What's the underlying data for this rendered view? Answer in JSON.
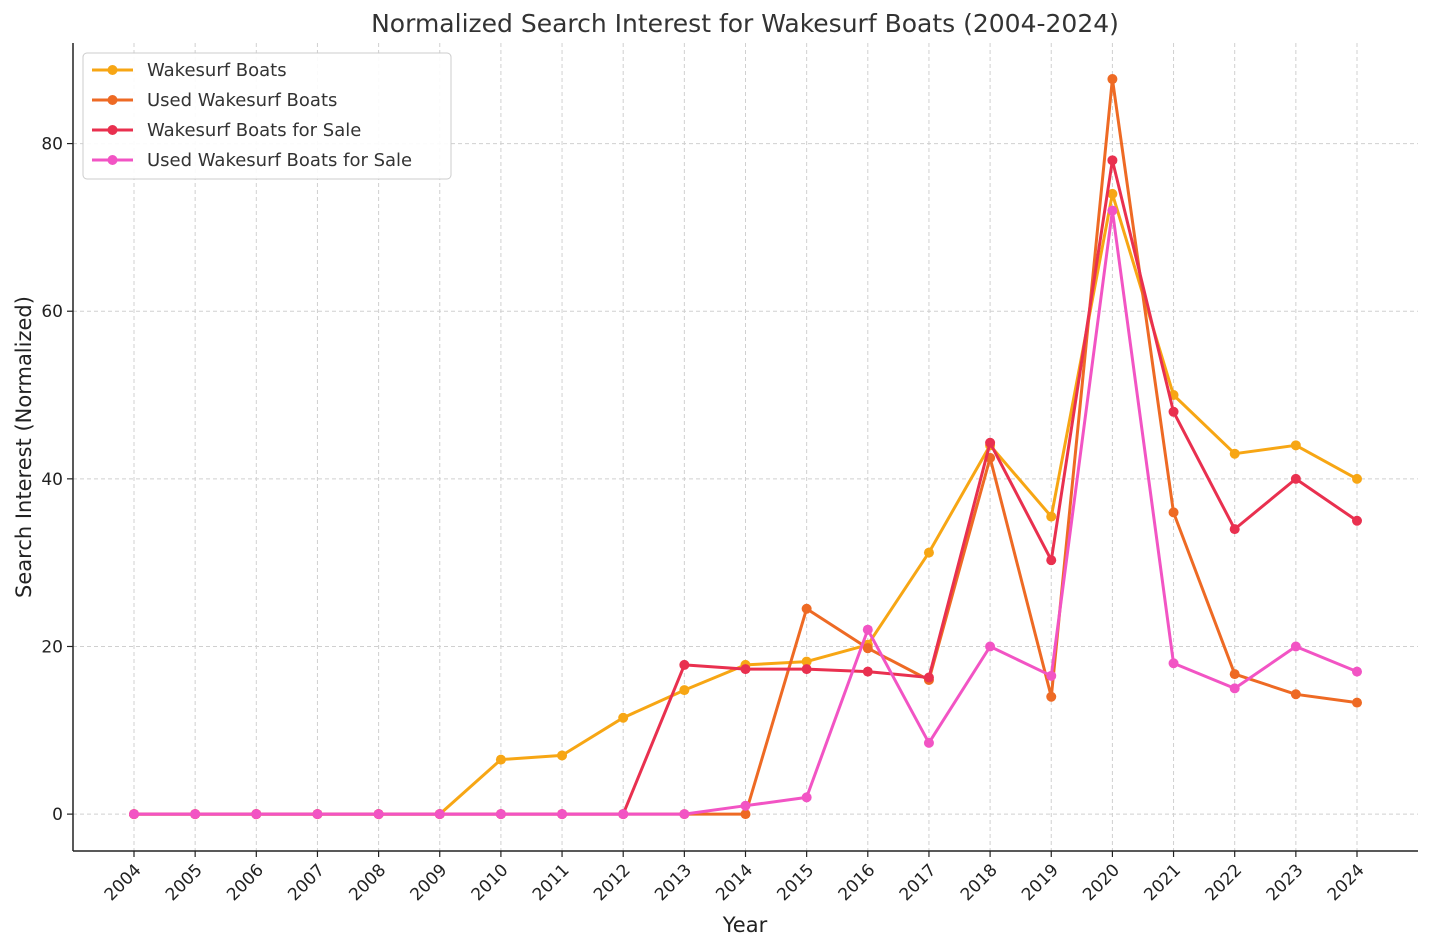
{
  "chart_data": {
    "type": "line",
    "title": "Normalized Search Interest for Wakesurf Boats (2004-2024)",
    "xlabel": "Year",
    "ylabel": "Search Interest (Normalized)",
    "categories": [
      "2004",
      "2005",
      "2006",
      "2007",
      "2008",
      "2009",
      "2010",
      "2011",
      "2012",
      "2013",
      "2014",
      "2015",
      "2016",
      "2017",
      "2018",
      "2019",
      "2020",
      "2021",
      "2022",
      "2023",
      "2024"
    ],
    "ylim": [
      -4.4,
      92
    ],
    "yticks": [
      0,
      20,
      40,
      60,
      80
    ],
    "grid": true,
    "legend_position": "top-left",
    "series": [
      {
        "name": "Wakesurf Boats",
        "color": "#F7A614",
        "values": [
          0,
          0,
          0,
          0,
          0,
          0,
          6.5,
          7,
          11.5,
          14.8,
          17.8,
          18.2,
          20.2,
          31.2,
          44,
          35.5,
          74,
          50,
          43,
          44,
          40
        ]
      },
      {
        "name": "Used Wakesurf Boats",
        "color": "#EE6A24",
        "values": [
          0,
          0,
          0,
          0,
          0,
          0,
          0,
          0,
          0,
          0,
          0,
          24.5,
          19.8,
          16,
          42.5,
          14,
          87.7,
          36,
          16.7,
          14.3,
          13.3
        ]
      },
      {
        "name": "Wakesurf Boats for Sale",
        "color": "#E9304F",
        "values": [
          0,
          0,
          0,
          0,
          0,
          0,
          0,
          0,
          0,
          17.8,
          17.3,
          17.3,
          17,
          16.3,
          44.3,
          30.3,
          78,
          48,
          34,
          40,
          35
        ]
      },
      {
        "name": "Used Wakesurf Boats for Sale",
        "color": "#F254C4",
        "values": [
          0,
          0,
          0,
          0,
          0,
          0,
          0,
          0,
          0,
          0,
          1,
          2,
          22,
          8.5,
          20,
          16.5,
          72,
          18,
          15,
          20,
          17
        ]
      }
    ]
  }
}
